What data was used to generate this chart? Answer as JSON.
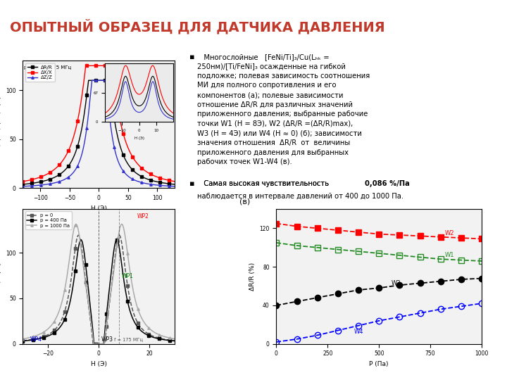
{
  "title": "ОПЫТНЫЙ ОБРАЗЕЦ ДЛЯ ДАТЧИКА ДАВЛЕНИЯ",
  "title_color": "#C0392B",
  "bg_color": "#FFFFFF",
  "accent_color": "#C0392B",
  "bullet1_line1": "Многослойные   [FeNi/Ti]₃/Cu(L₄ᵤ =",
  "bullet1_rest": "250нм)/[Ti/FeNi]₃ осажденные на гибкой подложке; полевая зависимость соотношения МИ для полного сопротивления и его компонентов (а); полевые зависимости отношение ΔR/R для различных значений приложенного давления; выбранные рабочие точки W1 (H = 8Э), W2 (ΔR/R =(ΔR/R)max), W3 (H = 4Э) или W4 (H ≈ 0) (б); зависимости значения отношения ΔR/R от величины приложенного давления для выбранных рабочих точек W1-W4 (в).",
  "bullet2_pre": "Самая высокая чувствительность ",
  "bullet2_bold": "0,086 %/Па",
  "bullet2_post": "\nнаблюдается в интервале давлений от 400 до 1000 Па."
}
